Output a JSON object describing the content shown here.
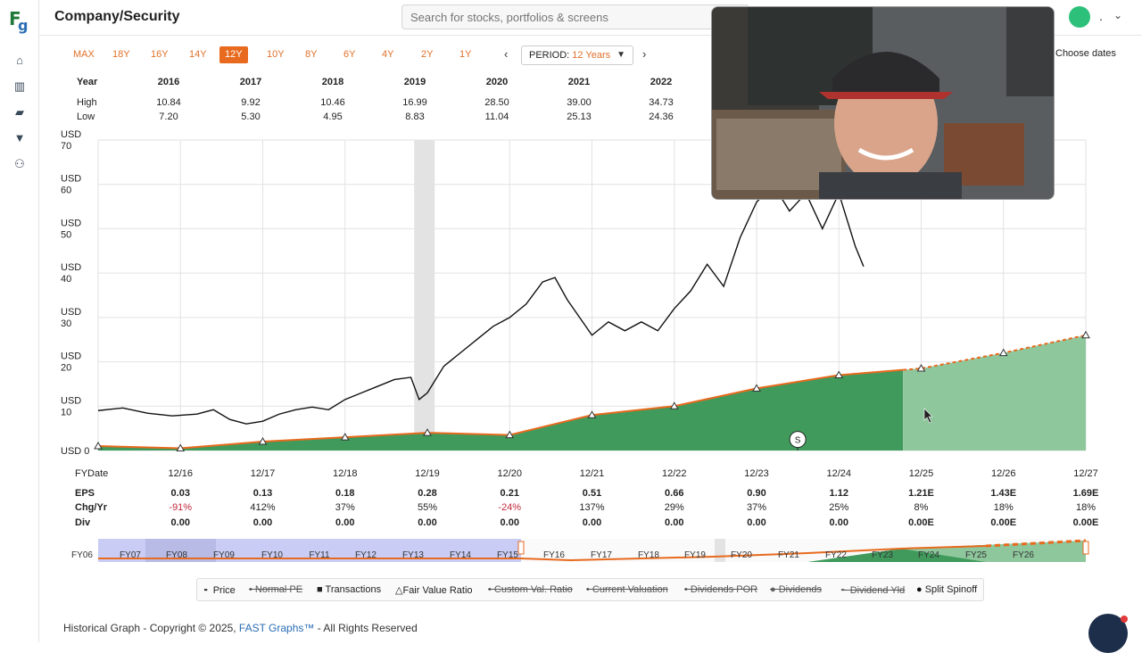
{
  "app": {
    "logo_text": "F",
    "logo_sub": "g",
    "page_title": "Company/Security"
  },
  "search": {
    "placeholder": "Search for stocks, portfolios & screens"
  },
  "user": {
    "name": "."
  },
  "ranges": [
    "MAX",
    "18Y",
    "16Y",
    "14Y",
    "12Y",
    "10Y",
    "8Y",
    "6Y",
    "4Y",
    "2Y",
    "1Y"
  ],
  "active_range": "12Y",
  "period": {
    "label": "PERIOD:",
    "value": "12 Years"
  },
  "choose_dates": "Choose dates",
  "year_table": {
    "year_label": "Year",
    "high_label": "High",
    "low_label": "Low",
    "years": [
      "2016",
      "2017",
      "2018",
      "2019",
      "2020",
      "2021",
      "2022"
    ],
    "high": [
      "10.84",
      "9.92",
      "10.46",
      "16.99",
      "28.50",
      "39.00",
      "34.73"
    ],
    "low": [
      "7.20",
      "5.30",
      "4.95",
      "8.83",
      "11.04",
      "25.13",
      "24.36"
    ]
  },
  "chart_data": {
    "type": "line",
    "ylabel_unit": "USD",
    "y_ticks": [
      "70",
      "60",
      "50",
      "40",
      "30",
      "20",
      "10",
      "0"
    ],
    "ylim": [
      0,
      70
    ],
    "grid": true,
    "x_categories": [
      "12/16",
      "12/17",
      "12/18",
      "12/19",
      "12/20",
      "12/21",
      "12/22",
      "12/23",
      "12/24",
      "12/25",
      "12/26",
      "12/27"
    ],
    "fair_value": [
      1,
      0.5,
      2,
      3,
      4,
      3.5,
      8,
      10,
      14,
      17,
      18.5,
      22,
      26
    ],
    "price": [
      [
        0,
        9
      ],
      [
        0.3,
        9.6
      ],
      [
        0.6,
        8.4
      ],
      [
        0.9,
        7.8
      ],
      [
        1.2,
        8.2
      ],
      [
        1.4,
        9.2
      ],
      [
        1.6,
        7
      ],
      [
        1.8,
        6
      ],
      [
        2.0,
        6.6
      ],
      [
        2.2,
        8.2
      ],
      [
        2.4,
        9.2
      ],
      [
        2.6,
        9.8
      ],
      [
        2.8,
        9.2
      ],
      [
        3.0,
        11.5
      ],
      [
        3.2,
        13
      ],
      [
        3.4,
        14.5
      ],
      [
        3.6,
        16
      ],
      [
        3.8,
        16.5
      ],
      [
        3.9,
        11.5
      ],
      [
        4.0,
        13
      ],
      [
        4.2,
        19
      ],
      [
        4.4,
        22
      ],
      [
        4.6,
        25
      ],
      [
        4.8,
        28
      ],
      [
        5.0,
        30
      ],
      [
        5.2,
        33
      ],
      [
        5.4,
        38
      ],
      [
        5.55,
        39
      ],
      [
        5.7,
        34
      ],
      [
        5.85,
        30
      ],
      [
        6.0,
        26
      ],
      [
        6.2,
        29
      ],
      [
        6.4,
        27
      ],
      [
        6.6,
        29
      ],
      [
        6.8,
        27
      ],
      [
        7.0,
        32
      ],
      [
        7.2,
        36
      ],
      [
        7.4,
        42
      ],
      [
        7.6,
        37
      ],
      [
        7.8,
        48
      ],
      [
        8.0,
        56
      ],
      [
        8.2,
        60
      ],
      [
        8.4,
        54
      ],
      [
        8.6,
        58
      ],
      [
        8.8,
        50
      ],
      [
        9.0,
        58
      ],
      [
        9.2,
        46
      ],
      [
        9.3,
        41.5
      ]
    ],
    "series": [
      {
        "name": "Price"
      },
      {
        "name": "Fair Value Ratio"
      }
    ],
    "marker_label": "S"
  },
  "fy_row": {
    "label": "FYDate",
    "eps_label": "EPS",
    "chg_label": "Chg/Yr",
    "div_label": "Div",
    "eps": [
      "0.03",
      "0.13",
      "0.18",
      "0.28",
      "0.21",
      "0.51",
      "0.66",
      "0.90",
      "1.12",
      "1.21E",
      "1.43E",
      "1.69E"
    ],
    "chg": [
      "-91%",
      "412%",
      "37%",
      "55%",
      "-24%",
      "137%",
      "29%",
      "37%",
      "25%",
      "8%",
      "18%",
      "18%"
    ],
    "div": [
      "0.00",
      "0.00",
      "0.00",
      "0.00",
      "0.00",
      "0.00",
      "0.00",
      "0.00",
      "0.00",
      "0.00E",
      "0.00E",
      "0.00E"
    ]
  },
  "navigator": {
    "labels": [
      "FY06",
      "FY07",
      "FY08",
      "FY09",
      "FY10",
      "FY11",
      "FY12",
      "FY13",
      "FY14",
      "FY15",
      "FY16",
      "FY17",
      "FY18",
      "FY19",
      "FY20",
      "FY21",
      "FY22",
      "FY23",
      "FY24",
      "FY25",
      "FY26"
    ]
  },
  "legend": [
    {
      "label": "Price",
      "strike": false,
      "marker": "dash"
    },
    {
      "label": "Normal PE",
      "strike": true,
      "marker": "dot"
    },
    {
      "label": "Transactions",
      "strike": false,
      "marker": "square"
    },
    {
      "label": "Fair Value Ratio",
      "strike": false,
      "marker": "triangle"
    },
    {
      "label": "Custom Val. Ratio",
      "strike": true,
      "marker": "dot"
    },
    {
      "label": "Current Valuation",
      "strike": true,
      "marker": "dot"
    },
    {
      "label": "Dividends POR",
      "strike": true,
      "marker": "dot"
    },
    {
      "label": "Dividends",
      "strike": true,
      "marker": "circle"
    },
    {
      "label": "Dividend Yld",
      "strike": true,
      "marker": "dash"
    },
    {
      "label": "Split Spinoff",
      "strike": false,
      "marker": "circle"
    }
  ],
  "footer": {
    "prefix": "Historical Graph - Copyright © 2025, ",
    "brand": "FAST Graphs™",
    "suffix": " - All Rights Reserved"
  },
  "colors": {
    "accent": "#e86a1e",
    "green_dark": "#3f9a5c",
    "green_light": "#8fc79d",
    "brand_blue": "#2a6db5"
  }
}
